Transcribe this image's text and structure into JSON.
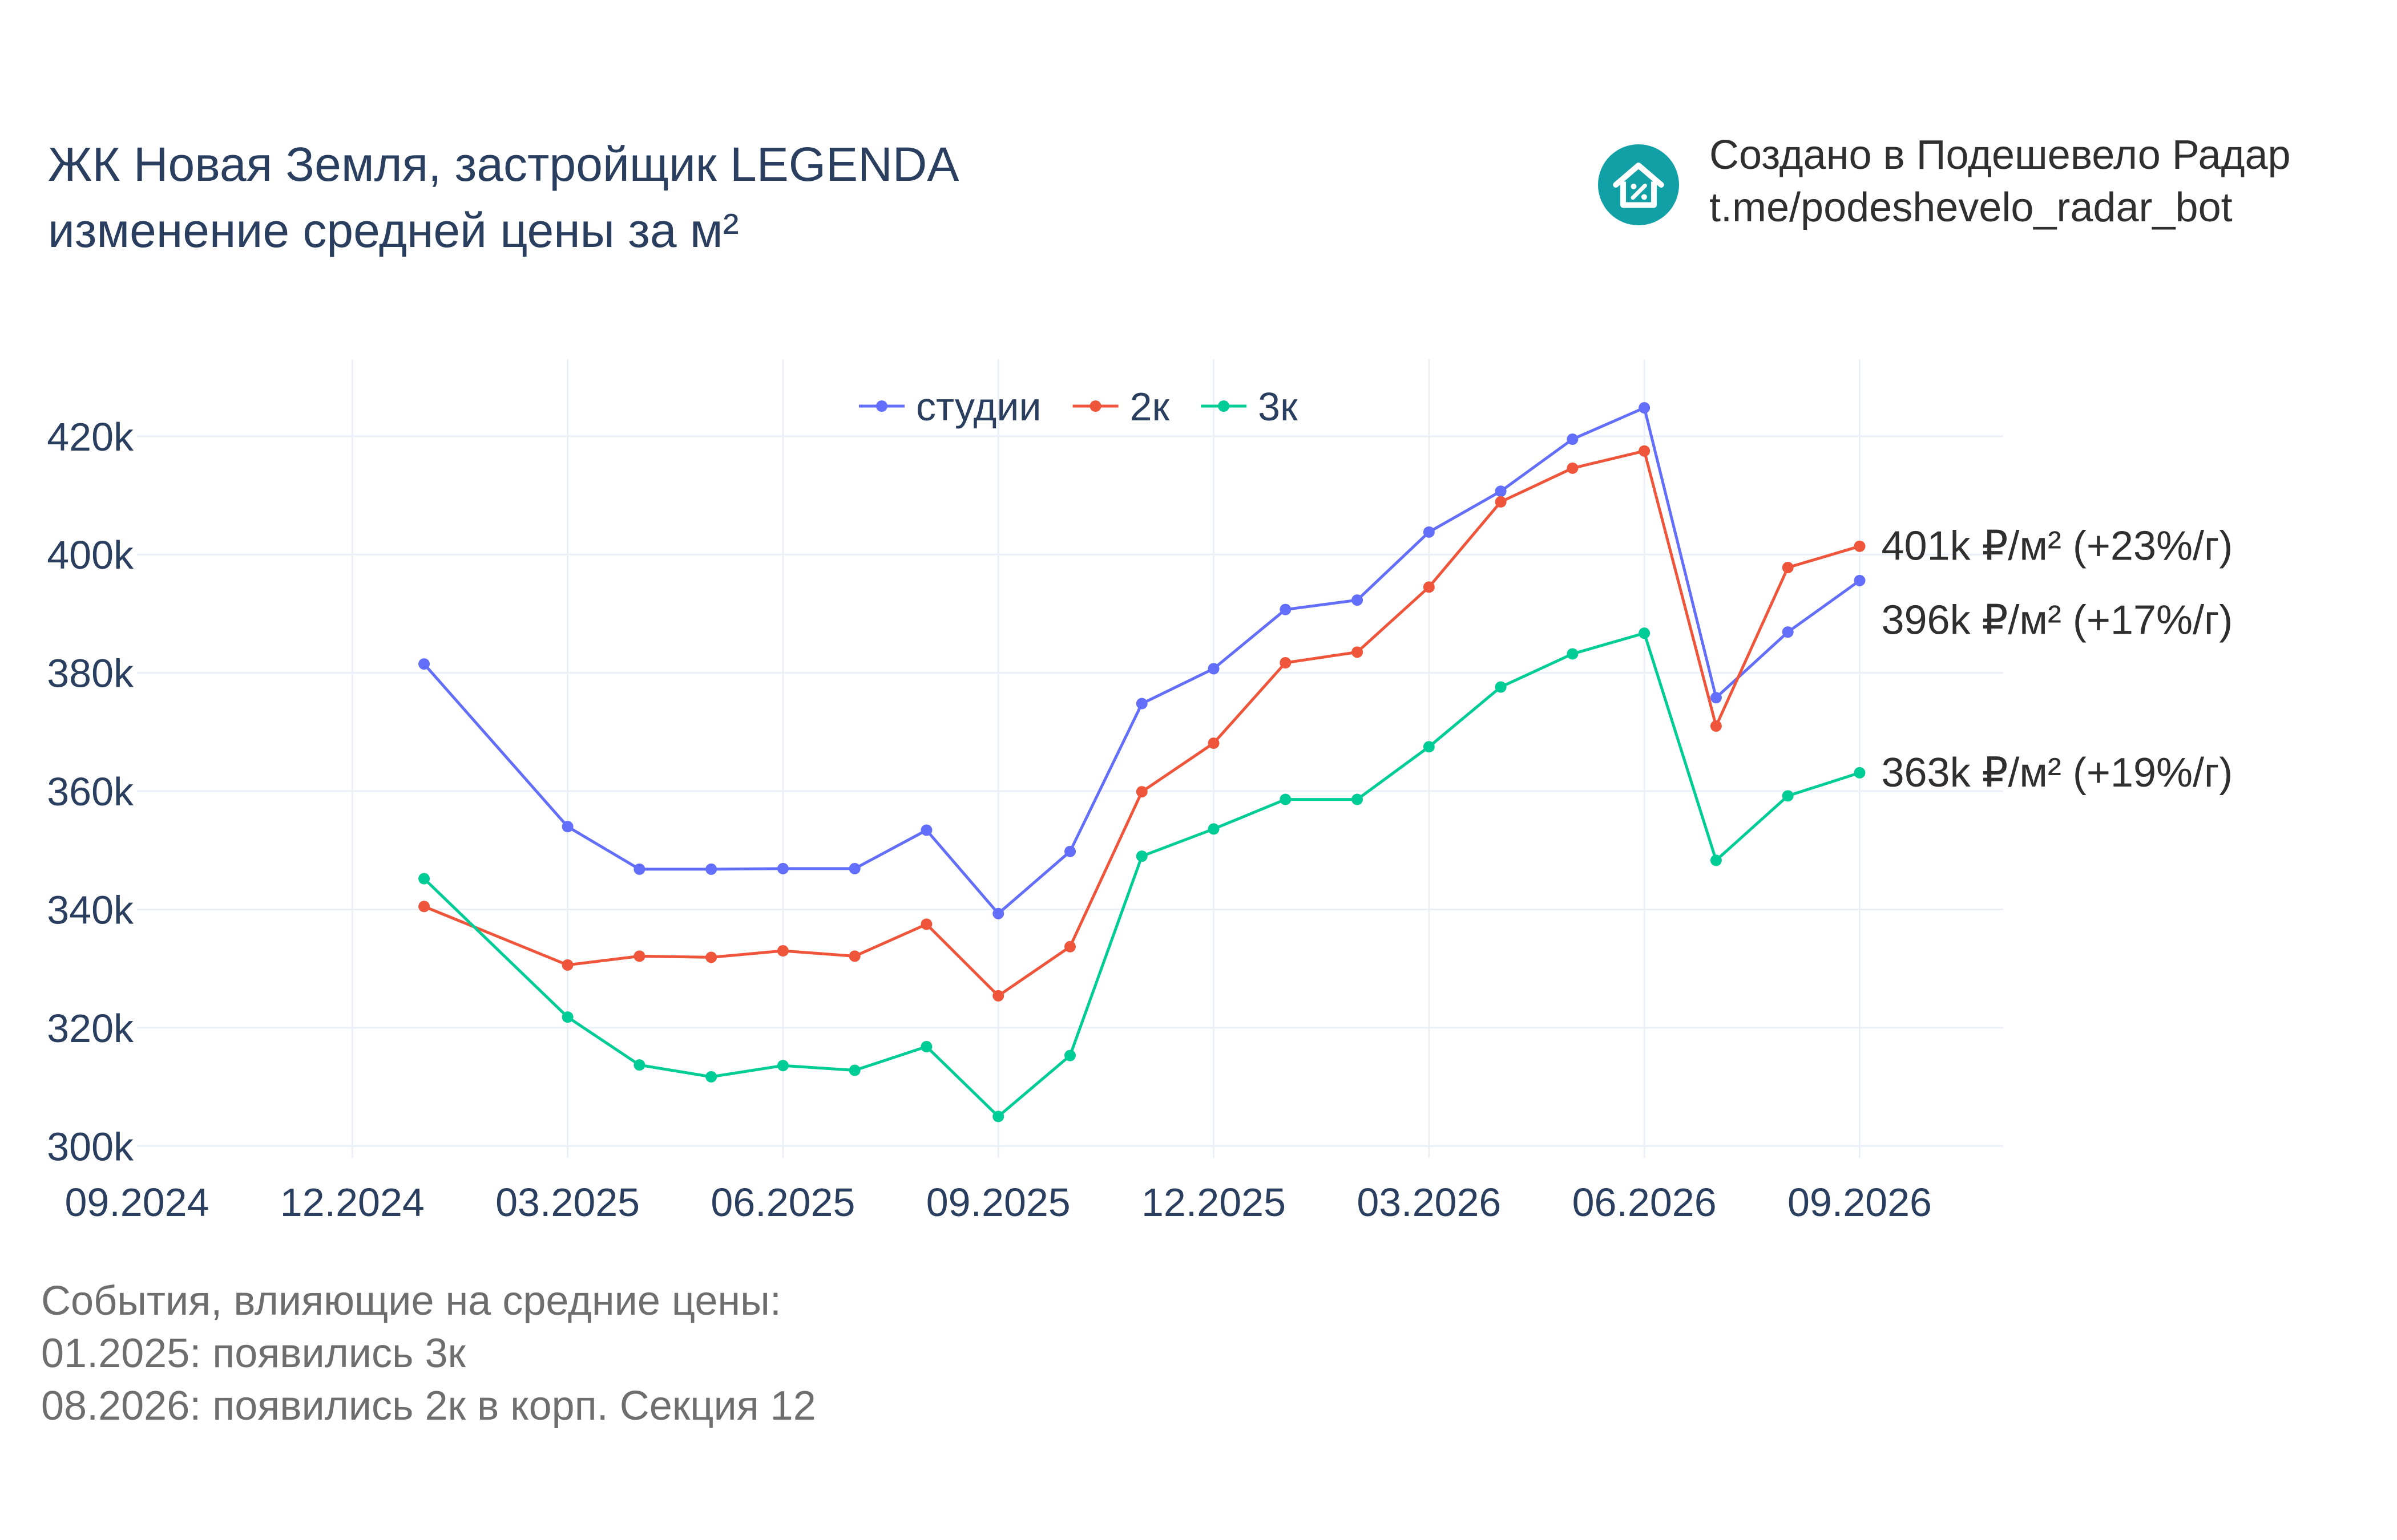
{
  "header": {
    "title_line1": "ЖК Новая Земля, застройщик LEGENDA",
    "title_line2": "изменение средней цены за м²"
  },
  "brand": {
    "line1": "Создано в Подешевело Радар",
    "line2": "t.me/podeshevelo_radar_bot",
    "icon": "house-percent-icon",
    "color": "#11a0a5"
  },
  "events": {
    "heading": "События, влияющие на средние цены:",
    "items": [
      "01.2025: появились 3к",
      "08.2026: появились 2к в корп. Секция 12"
    ]
  },
  "chart_data": {
    "type": "line",
    "x": [
      "2025-01",
      "2025-03",
      "2025-04",
      "2025-05",
      "2025-06",
      "2025-07",
      "2025-08",
      "2025-09",
      "2025-10",
      "2025-11",
      "2025-12",
      "2026-01",
      "2026-02",
      "2026-03",
      "2026-04",
      "2026-05",
      "2026-06",
      "2026-07",
      "2026-08",
      "2026-09"
    ],
    "x_ticks": [
      "09.2024",
      "12.2024",
      "03.2025",
      "06.2025",
      "09.2025",
      "12.2025",
      "03.2026",
      "06.2026",
      "09.2026"
    ],
    "x_tick_values": [
      "2024-09",
      "2024-12",
      "2025-03",
      "2025-06",
      "2025-09",
      "2025-12",
      "2026-03",
      "2026-06",
      "2026-09"
    ],
    "xlim": [
      "2024-09",
      "2026-11"
    ],
    "y_ticks": [
      "300k",
      "320k",
      "340k",
      "360k",
      "380k",
      "400k",
      "420k"
    ],
    "y_tick_values": [
      300000,
      320000,
      340000,
      360000,
      380000,
      400000,
      420000
    ],
    "ylim": [
      298000,
      433000
    ],
    "grid": true,
    "legend_position": "top-center",
    "series": [
      {
        "name": "студии",
        "color": "#636efa",
        "values": [
          381500,
          354000,
          346800,
          346800,
          346900,
          346900,
          353400,
          339300,
          349800,
          374800,
          380700,
          390700,
          392300,
          403800,
          410700,
          419500,
          424800,
          375800,
          386900,
          395600
        ],
        "end_label": "396k ₽/м² (+17%/г)"
      },
      {
        "name": "2к",
        "color": "#ef553b",
        "values": [
          340500,
          330600,
          332100,
          331900,
          333000,
          332100,
          337500,
          325400,
          333700,
          359900,
          368100,
          381700,
          383500,
          394500,
          408900,
          414600,
          417500,
          371000,
          397800,
          401400
        ],
        "end_label": "401k ₽/м² (+23%/г)"
      },
      {
        "name": "3к",
        "color": "#00cc96",
        "values": [
          345200,
          321800,
          313700,
          311700,
          313600,
          312800,
          316800,
          305000,
          315300,
          349000,
          353600,
          358600,
          358600,
          367500,
          377600,
          383200,
          386700,
          348300,
          359200,
          363100
        ],
        "end_label": "363k ₽/м² (+19%/г)"
      }
    ]
  }
}
